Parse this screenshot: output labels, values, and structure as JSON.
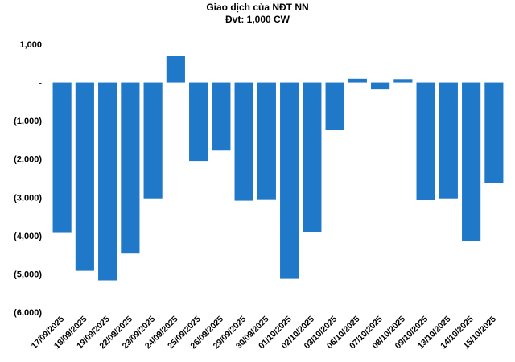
{
  "chart_data": {
    "type": "bar",
    "title": "Giao dịch của NĐT NN",
    "subtitle": "Đvt: 1,000 CW",
    "xlabel": "",
    "ylabel": "",
    "ylim": [
      -6000,
      1000
    ],
    "yticks": [
      1000,
      0,
      -1000,
      -2000,
      -3000,
      -4000,
      -5000,
      -6000
    ],
    "ytick_labels": [
      "1,000",
      "-",
      "(1,000)",
      "(2,000)",
      "(3,000)",
      "(4,000)",
      "(5,000)",
      "(6,000)"
    ],
    "grid": false,
    "legend": "none",
    "bar_color": "#1F78C8",
    "categories": [
      "17/09/2025",
      "18/09/2025",
      "19/09/2025",
      "22/09/2025",
      "23/09/2025",
      "24/09/2025",
      "25/09/2025",
      "26/09/2025",
      "29/09/2025",
      "30/09/2025",
      "01/10/2025",
      "02/10/2025",
      "03/10/2025",
      "06/10/2025",
      "07/10/2025",
      "08/10/2025",
      "09/10/2025",
      "13/10/2025",
      "14/10/2025",
      "15/10/2025"
    ],
    "values": [
      -3930,
      -4920,
      -5170,
      -4470,
      -3030,
      700,
      -2050,
      -1780,
      -3090,
      -3050,
      -5130,
      -3900,
      -1230,
      100,
      -180,
      90,
      -3070,
      -3030,
      -4150,
      -2620
    ]
  }
}
